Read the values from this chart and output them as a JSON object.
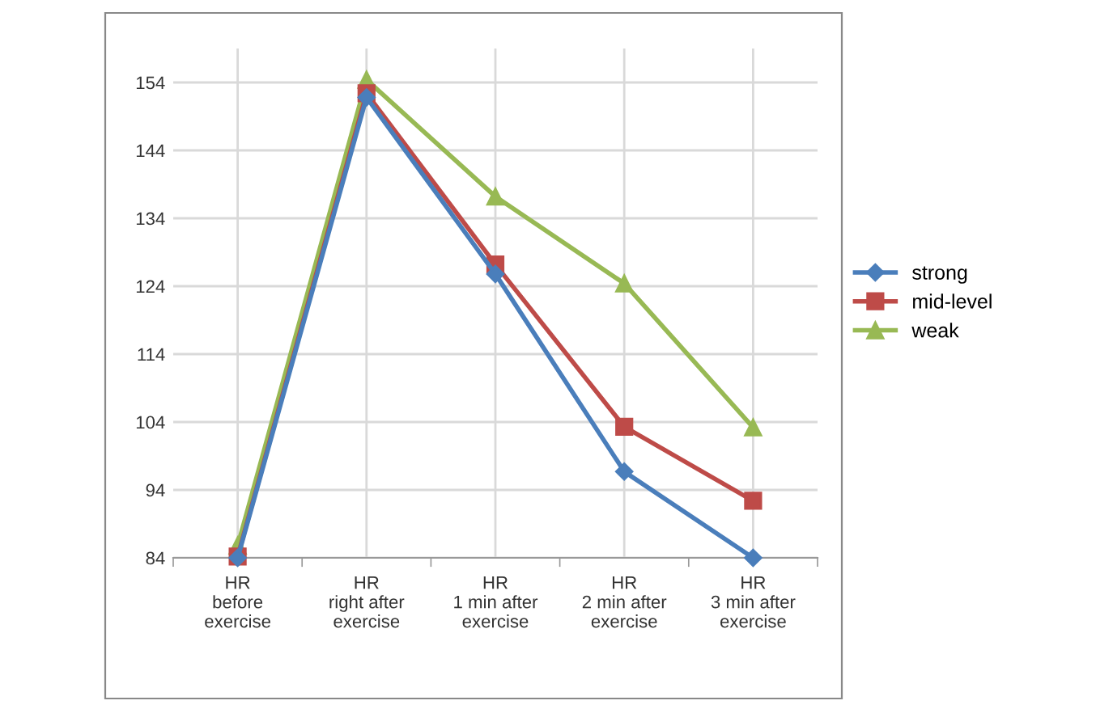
{
  "chart_data": {
    "type": "line",
    "categories": [
      "HR\nbefore\nexercise",
      "HR\nright after\nexercise",
      "HR\n1 min after\nexercise",
      "HR\n2 min after\nexercise",
      "HR\n3 min after\nexercise"
    ],
    "series": [
      {
        "name": "strong",
        "color": "#4a7ebb",
        "marker": "diamond",
        "values": [
          84,
          151.8,
          125.8,
          96.7,
          84
        ]
      },
      {
        "name": "mid-level",
        "color": "#be4b48",
        "marker": "square",
        "values": [
          84.2,
          152.4,
          127.2,
          103.3,
          92.4
        ]
      },
      {
        "name": "weak",
        "color": "#98b954",
        "marker": "triangle",
        "values": [
          85.8,
          154.4,
          137.2,
          124.4,
          103.2
        ]
      }
    ],
    "ylim": [
      84,
      159
    ],
    "yticks": [
      84,
      94,
      104,
      114,
      124,
      134,
      144,
      154
    ],
    "grid": true,
    "legend": "right",
    "line_style": "solid"
  }
}
